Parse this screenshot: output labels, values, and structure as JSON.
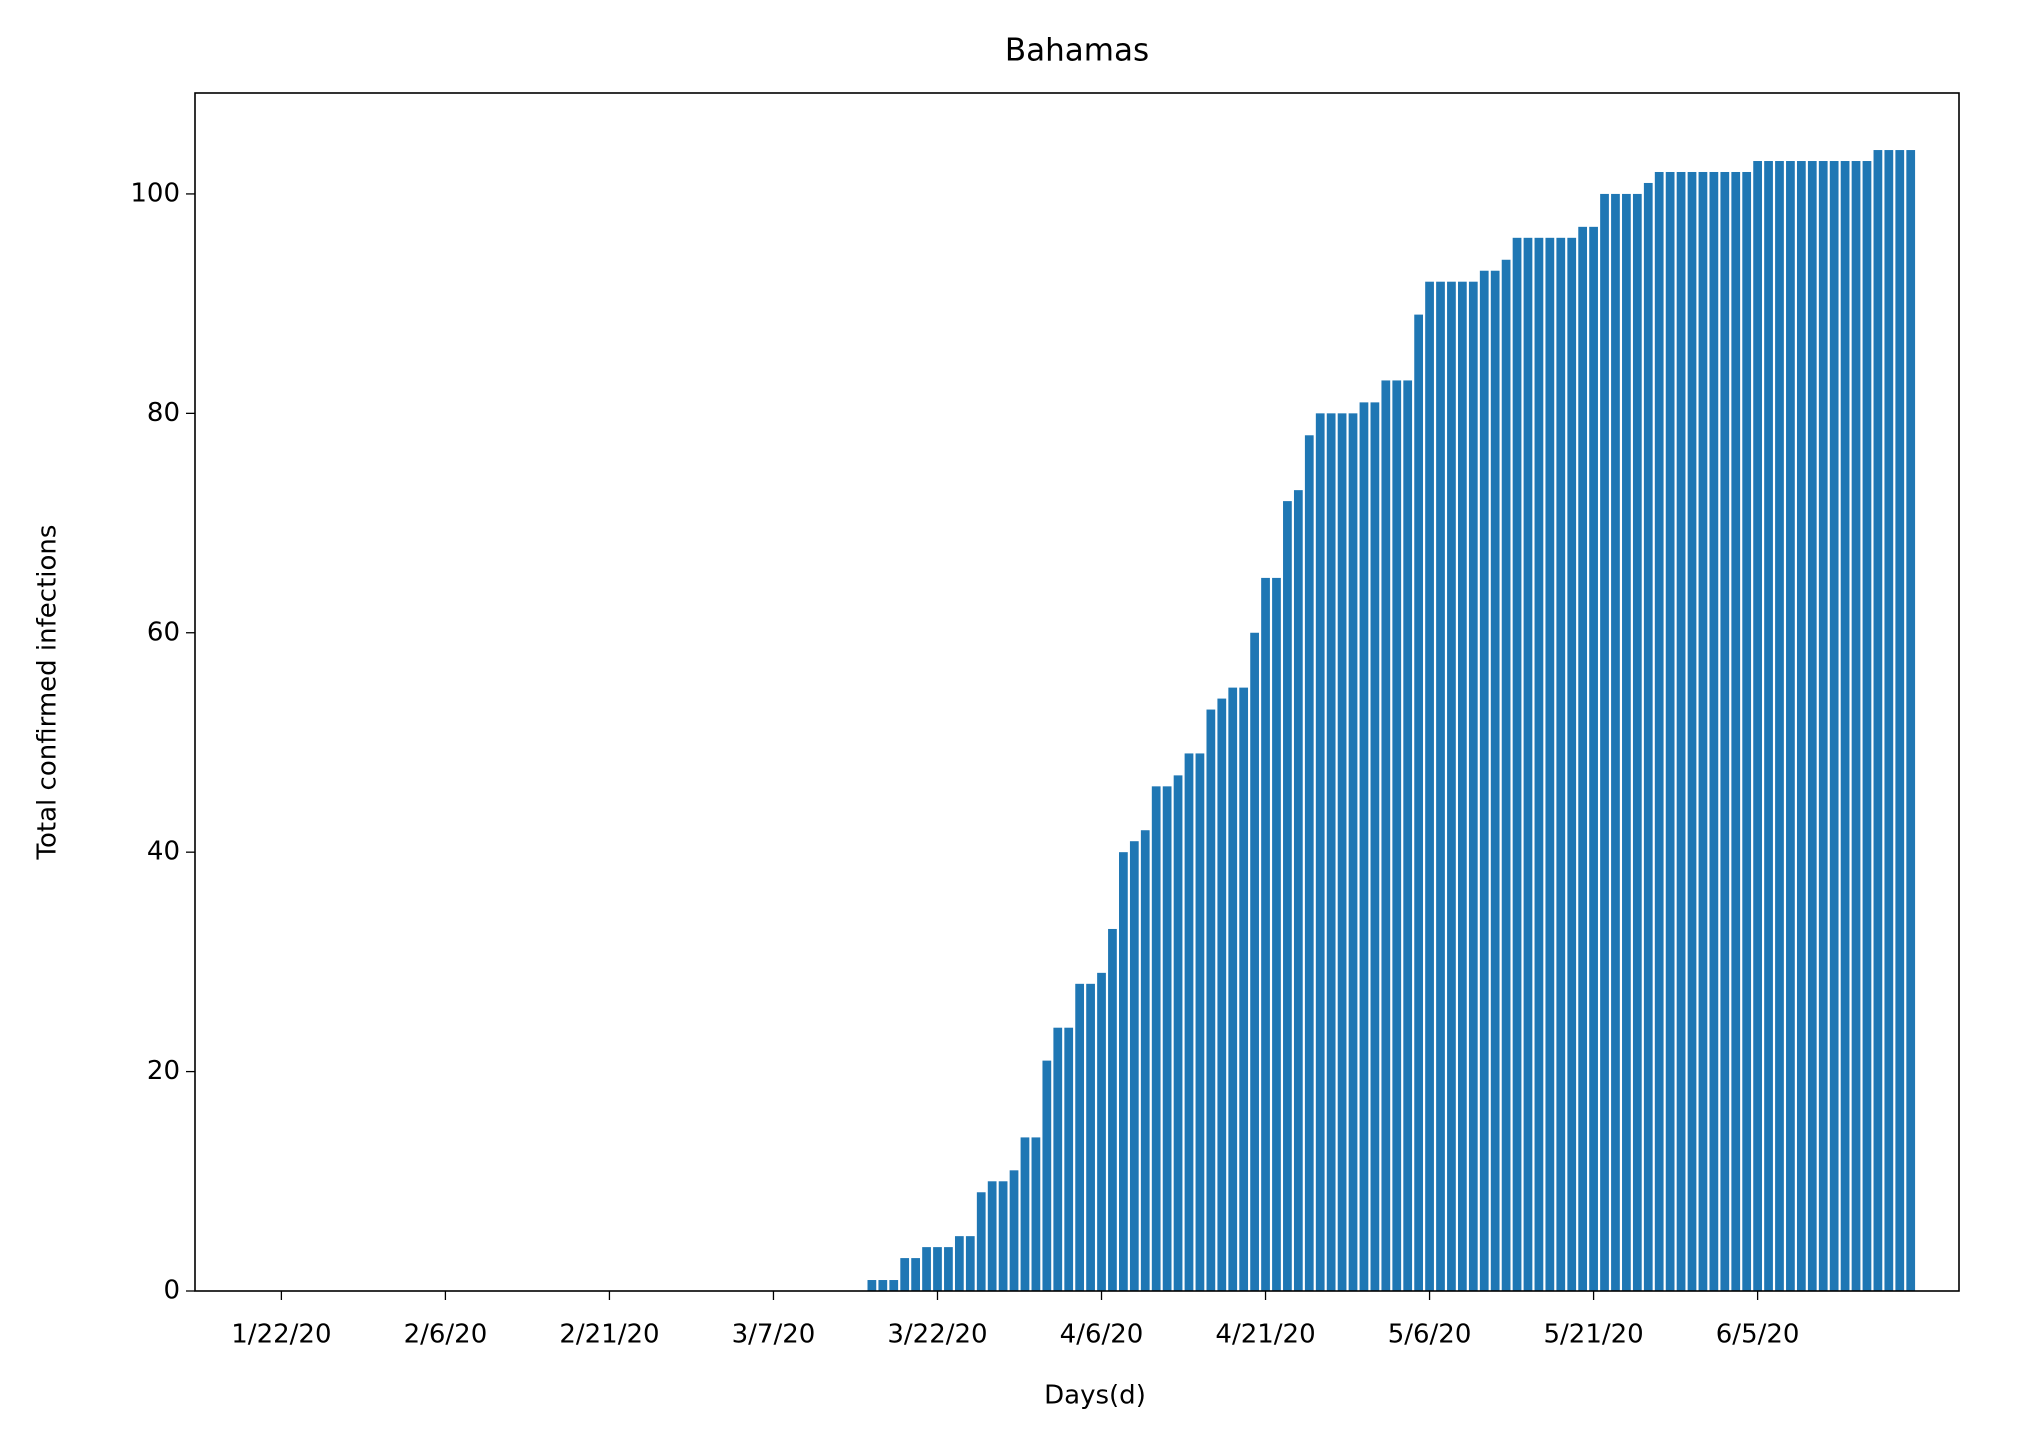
{
  "chart_data": {
    "type": "bar",
    "title": "Bahamas",
    "x_label": "Days(d)",
    "y_label": "Total confirmed infections",
    "color": "#1f77b4",
    "categories": [
      "1/22/20",
      null,
      null,
      null,
      null,
      null,
      null,
      null,
      null,
      null,
      null,
      null,
      null,
      null,
      null,
      "2/6/20",
      null,
      null,
      null,
      null,
      null,
      null,
      null,
      null,
      null,
      null,
      null,
      null,
      null,
      null,
      "2/21/20",
      null,
      null,
      null,
      null,
      null,
      null,
      null,
      null,
      null,
      null,
      null,
      null,
      null,
      null,
      "3/7/20",
      null,
      null,
      null,
      null,
      null,
      null,
      null,
      null,
      null,
      null,
      null,
      null,
      null,
      null,
      "3/22/20",
      null,
      null,
      null,
      null,
      null,
      null,
      null,
      null,
      null,
      null,
      null,
      null,
      null,
      null,
      "4/6/20",
      null,
      null,
      null,
      null,
      null,
      null,
      null,
      null,
      null,
      null,
      null,
      null,
      null,
      null,
      "4/21/20",
      null,
      null,
      null,
      null,
      null,
      null,
      null,
      null,
      null,
      null,
      null,
      null,
      null,
      null,
      "5/6/20",
      null,
      null,
      null,
      null,
      null,
      null,
      null,
      null,
      null,
      null,
      null,
      null,
      null,
      null,
      "5/21/20",
      null,
      null,
      null,
      null,
      null,
      null,
      null,
      null,
      null,
      null,
      null,
      null,
      null,
      null,
      "6/5/20",
      null,
      null,
      null,
      null,
      null,
      null,
      null,
      null,
      null,
      null,
      null,
      null,
      null,
      null
    ],
    "values": [
      0,
      0,
      0,
      0,
      0,
      0,
      0,
      0,
      0,
      0,
      0,
      0,
      0,
      0,
      0,
      0,
      0,
      0,
      0,
      0,
      0,
      0,
      0,
      0,
      0,
      0,
      0,
      0,
      0,
      0,
      0,
      0,
      0,
      0,
      0,
      0,
      0,
      0,
      0,
      0,
      0,
      0,
      0,
      0,
      0,
      0,
      0,
      0,
      0,
      0,
      0,
      0,
      0,
      0,
      1,
      1,
      1,
      3,
      3,
      4,
      4,
      4,
      5,
      5,
      9,
      10,
      10,
      11,
      14,
      14,
      21,
      24,
      24,
      28,
      28,
      29,
      33,
      40,
      41,
      42,
      46,
      46,
      47,
      49,
      49,
      53,
      54,
      55,
      55,
      60,
      65,
      65,
      72,
      73,
      78,
      80,
      80,
      80,
      80,
      81,
      81,
      83,
      83,
      83,
      89,
      92,
      92,
      92,
      92,
      92,
      93,
      93,
      94,
      96,
      96,
      96,
      96,
      96,
      96,
      97,
      97,
      100,
      100,
      100,
      100,
      101,
      102,
      102,
      102,
      102,
      102,
      102,
      102,
      102,
      102,
      103,
      103,
      103,
      103,
      103,
      103,
      103,
      103,
      103,
      103,
      103,
      104,
      104,
      104,
      104
    ],
    "ylim": [
      0,
      109.2
    ],
    "yticks": [
      0,
      20,
      40,
      60,
      80,
      100
    ]
  }
}
